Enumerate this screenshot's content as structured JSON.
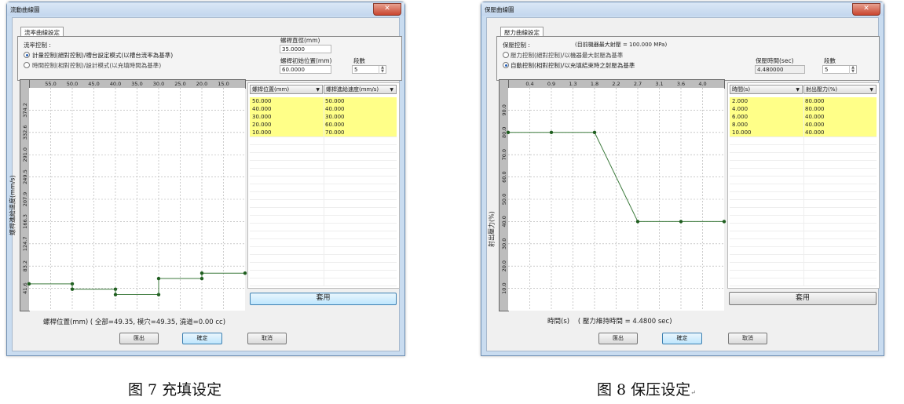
{
  "dialogs": {
    "fill": {
      "window_title": "流動曲線圖",
      "tab": "流率曲線設定",
      "control_label": "流率控制 :",
      "options": [
        "計量控制(絕對控制)/槽台設定模式(以槽台流率為基準)",
        "時間控制(相對控制)/設計模式(以充填時間為基準)"
      ],
      "selected_option": 0,
      "diameter_label": "螺桿直徑(mm)",
      "diameter_value": "35.0000",
      "start_pos_label": "螺桿初始位置(mm)",
      "start_pos_value": "60.0000",
      "segments_label": "段數",
      "segments_value": "5",
      "table_headers": [
        "螺桿位置(mm)",
        "螺桿進給速度(mm/s)"
      ],
      "table_rows": [
        [
          "50.000",
          "50.000"
        ],
        [
          "40.000",
          "40.000"
        ],
        [
          "30.000",
          "30.000"
        ],
        [
          "20.000",
          "60.000"
        ],
        [
          "10.000",
          "70.000"
        ]
      ],
      "apply_label": "套用",
      "footer_text": "螺桿位置(mm) ( 全部=49.35, 模穴=49.35, 澆道=0.00 cc)",
      "buttons": {
        "export": "匯出",
        "ok": "確定",
        "cancel": "取消"
      }
    },
    "pack": {
      "window_title": "保壓曲線圖",
      "tab": "壓力曲線設定",
      "control_label": "保壓控制 :",
      "max_pressure_note": "(目前機器最大射壓 = 100.000 MPa)",
      "options": [
        "壓力控制(絕對控制)/以機器最大射壓為基準",
        "自動控制(相對控制)/以充填結束時之射壓為基準"
      ],
      "selected_option": 1,
      "hold_time_label": "保壓時間(sec)",
      "hold_time_value": "4.480000",
      "segments_label": "段數",
      "segments_value": "5",
      "table_headers": [
        "時間(s)",
        "射出壓力(%)"
      ],
      "table_rows": [
        [
          "2.000",
          "80.000"
        ],
        [
          "4.000",
          "80.000"
        ],
        [
          "6.000",
          "40.000"
        ],
        [
          "8.000",
          "40.000"
        ],
        [
          "10.000",
          "40.000"
        ]
      ],
      "apply_label": "套用",
      "footer_text": "時間(s)    ( 壓力維持時間 = 4.4800 sec)",
      "buttons": {
        "export": "匯出",
        "ok": "確定",
        "cancel": "取消"
      }
    }
  },
  "captions": {
    "fig7": "图 7 充填设定",
    "fig8": "图 8 保压设定",
    "return_mark": "↵"
  },
  "colors": {
    "line": "#3c7a3c",
    "marker": "#1f5e1f",
    "highlight_row": "#ffff88",
    "close_button": "#c8452f"
  },
  "chart_data": [
    {
      "type": "line",
      "step": true,
      "ylabel": "螺桿進給速度(mm/s)",
      "xlabel": "螺桿位置(mm)",
      "x_ticks": [
        "55.0",
        "50.0",
        "45.0",
        "40.0",
        "35.0",
        "30.0",
        "25.0",
        "20.0",
        "15.0"
      ],
      "x_tick_values": [
        55,
        50,
        45,
        40,
        35,
        30,
        25,
        20,
        15
      ],
      "y_ticks": [
        "41.6",
        "83.2",
        "124.7",
        "166.3",
        "207.9",
        "249.5",
        "291.0",
        "332.6",
        "374.2"
      ],
      "y_tick_values": [
        41.6,
        83.2,
        124.7,
        166.3,
        207.9,
        249.5,
        291.0,
        332.6,
        374.2
      ],
      "xlim": [
        60,
        10
      ],
      "ylim": [
        0,
        415.8
      ],
      "grid": true,
      "segments": [
        {
          "x_from": 60,
          "x_to": 50,
          "y": 50
        },
        {
          "x_from": 50,
          "x_to": 40,
          "y": 40
        },
        {
          "x_from": 40,
          "x_to": 30,
          "y": 30
        },
        {
          "x_from": 30,
          "x_to": 20,
          "y": 60
        },
        {
          "x_from": 20,
          "x_to": 10,
          "y": 70
        }
      ]
    },
    {
      "type": "line",
      "ylabel": "射出壓力(%)",
      "xlabel": "時間(s)",
      "x_ticks": [
        "0.4",
        "0.9",
        "1.3",
        "1.8",
        "2.2",
        "2.7",
        "3.1",
        "3.6",
        "4.0"
      ],
      "x_tick_values": [
        0.448,
        0.896,
        1.344,
        1.792,
        2.24,
        2.688,
        3.136,
        3.584,
        4.032
      ],
      "y_ticks": [
        "10.0",
        "20.0",
        "30.0",
        "40.0",
        "50.0",
        "60.0",
        "70.0",
        "80.0",
        "90.0"
      ],
      "y_tick_values": [
        10,
        20,
        30,
        40,
        50,
        60,
        70,
        80,
        90
      ],
      "xlim": [
        0,
        4.48
      ],
      "ylim": [
        0,
        100
      ],
      "grid": true,
      "x": [
        0,
        0.896,
        1.792,
        2.688,
        3.584,
        4.48
      ],
      "y": [
        80,
        80,
        80,
        40,
        40,
        40
      ]
    }
  ]
}
